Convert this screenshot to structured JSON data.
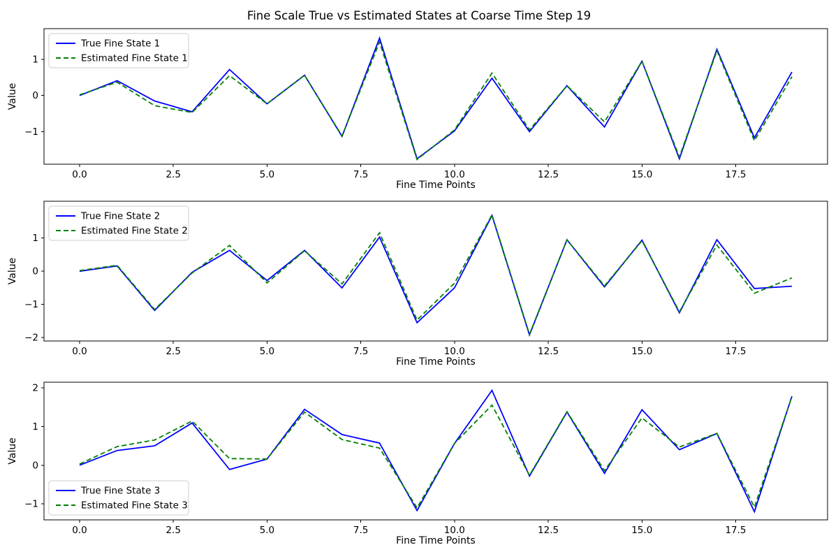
{
  "figure": {
    "title": "Fine Scale True vs Estimated States at Coarse Time Step 19",
    "background_color": "#ffffff",
    "true_color": "#0000ff",
    "estimated_color": "#008000"
  },
  "chart_data": [
    {
      "type": "line",
      "subplot_index": 1,
      "xlabel": "Fine Time Points",
      "ylabel": "Value",
      "grid": false,
      "legend": {
        "position": "upper-left"
      },
      "xlim": [
        -0.95,
        19.95
      ],
      "ylim": [
        -1.9,
        1.85
      ],
      "xticks": {
        "values": [
          0,
          2.5,
          5,
          7.5,
          10,
          12.5,
          15,
          17.5
        ],
        "labels": [
          "0.0",
          "2.5",
          "5.0",
          "7.5",
          "10.0",
          "12.5",
          "15.0",
          "17.5"
        ]
      },
      "yticks": {
        "values": [
          -1,
          0,
          1
        ],
        "labels": [
          "−1",
          "0",
          "1"
        ]
      },
      "x": [
        0,
        1,
        2,
        3,
        4,
        5,
        6,
        7,
        8,
        9,
        10,
        11,
        12,
        13,
        14,
        15,
        16,
        17,
        18,
        19
      ],
      "series": [
        {
          "name": "True Fine State 1",
          "color": "#0000ff",
          "line_style": "solid",
          "values": [
            0.0,
            0.41,
            -0.15,
            -0.45,
            0.72,
            -0.23,
            0.56,
            -1.13,
            1.59,
            -1.75,
            -0.98,
            0.48,
            -1.0,
            0.27,
            -0.87,
            0.95,
            -1.75,
            1.28,
            -1.17,
            0.65
          ]
        },
        {
          "name": "Estimated Fine State 1",
          "color": "#008000",
          "line_style": "dashed",
          "values": [
            0.02,
            0.37,
            -0.28,
            -0.47,
            0.55,
            -0.23,
            0.56,
            -1.12,
            1.48,
            -1.77,
            -0.95,
            0.62,
            -0.95,
            0.27,
            -0.73,
            0.95,
            -1.7,
            1.24,
            -1.25,
            0.52
          ]
        }
      ]
    },
    {
      "type": "line",
      "subplot_index": 2,
      "xlabel": "Fine Time Points",
      "ylabel": "Value",
      "grid": false,
      "legend": {
        "position": "upper-left"
      },
      "xlim": [
        -0.95,
        19.95
      ],
      "ylim": [
        -2.1,
        2.11
      ],
      "xticks": {
        "values": [
          0,
          2.5,
          5,
          7.5,
          10,
          12.5,
          15,
          17.5
        ],
        "labels": [
          "0.0",
          "2.5",
          "5.0",
          "7.5",
          "10.0",
          "12.5",
          "15.0",
          "17.5"
        ]
      },
      "yticks": {
        "values": [
          -2,
          -1,
          0,
          1
        ],
        "labels": [
          "−2",
          "−1",
          "0",
          "1"
        ]
      },
      "x": [
        0,
        1,
        2,
        3,
        4,
        5,
        6,
        7,
        8,
        9,
        10,
        11,
        12,
        13,
        14,
        15,
        16,
        17,
        18,
        19
      ],
      "series": [
        {
          "name": "True Fine State 2",
          "color": "#0000ff",
          "line_style": "solid",
          "values": [
            0.0,
            0.16,
            -1.18,
            -0.03,
            0.63,
            -0.28,
            0.63,
            -0.5,
            1.03,
            -1.55,
            -0.5,
            1.68,
            -1.92,
            0.95,
            -0.47,
            0.94,
            -1.25,
            0.95,
            -0.52,
            -0.45
          ]
        },
        {
          "name": "Estimated Fine State 2",
          "color": "#008000",
          "line_style": "dashed",
          "values": [
            0.02,
            0.18,
            -1.15,
            -0.05,
            0.78,
            -0.35,
            0.62,
            -0.38,
            1.16,
            -1.47,
            -0.36,
            1.7,
            -1.9,
            0.95,
            -0.44,
            0.92,
            -1.22,
            0.79,
            -0.66,
            -0.2
          ]
        }
      ]
    },
    {
      "type": "line",
      "subplot_index": 3,
      "xlabel": "Fine Time Points",
      "ylabel": "Value",
      "grid": false,
      "legend": {
        "position": "lower-left"
      },
      "xlim": [
        -0.95,
        19.95
      ],
      "ylim": [
        -1.41,
        2.14
      ],
      "xticks": {
        "values": [
          0,
          2.5,
          5,
          7.5,
          10,
          12.5,
          15,
          17.5
        ],
        "labels": [
          "0.0",
          "2.5",
          "5.0",
          "7.5",
          "10.0",
          "12.5",
          "15.0",
          "17.5"
        ]
      },
      "yticks": {
        "values": [
          -1,
          0,
          1,
          2
        ],
        "labels": [
          "−1",
          "0",
          "1",
          "2"
        ]
      },
      "x": [
        0,
        1,
        2,
        3,
        4,
        5,
        6,
        7,
        8,
        9,
        10,
        11,
        12,
        13,
        14,
        15,
        16,
        17,
        18,
        19
      ],
      "series": [
        {
          "name": "True Fine State 3",
          "color": "#0000ff",
          "line_style": "solid",
          "values": [
            0.0,
            0.38,
            0.5,
            1.09,
            -0.11,
            0.16,
            1.44,
            0.79,
            0.57,
            -1.17,
            0.56,
            1.93,
            -0.28,
            1.37,
            -0.21,
            1.43,
            0.4,
            0.82,
            -1.2,
            1.78
          ]
        },
        {
          "name": "Estimated Fine State 3",
          "color": "#008000",
          "line_style": "dashed",
          "values": [
            0.03,
            0.48,
            0.65,
            1.14,
            0.17,
            0.16,
            1.37,
            0.66,
            0.44,
            -1.1,
            0.56,
            1.55,
            -0.26,
            1.38,
            -0.14,
            1.22,
            0.47,
            0.82,
            -1.08,
            1.77
          ]
        }
      ]
    }
  ]
}
